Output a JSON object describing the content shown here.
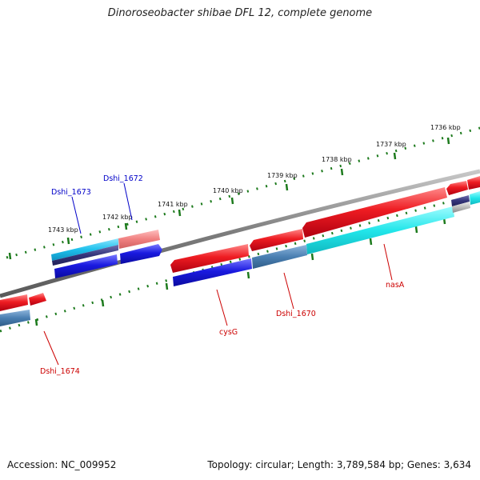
{
  "title": "Dinoroseobacter shibae DFL 12, complete genome",
  "footer": {
    "accession": "Accession: NC_009952",
    "topology": "Topology: circular; Length: 3,789,584 bp; Genes: 3,634"
  },
  "colors": {
    "forward_gene": "#e8141a",
    "reverse_gene": "#1414d8",
    "rna_forward": "#1ec8e8",
    "cds_cyan": "#22e6ea",
    "steel_blue": "#4a7fb2",
    "backbone": "#808080",
    "tick": "#1c7a1c",
    "label_red": "#cc0000",
    "label_blue": "#0000c8"
  },
  "scale_labels": [
    "1743 kbp",
    "1742 kbp",
    "1741 kbp",
    "1740 kbp",
    "1739 kbp",
    "1738 kbp",
    "1737 kbp",
    "1736 kbp"
  ],
  "gene_labels": [
    {
      "text": "Dshi_1673",
      "strand": "reverse"
    },
    {
      "text": "Dshi_1672",
      "strand": "reverse"
    },
    {
      "text": "Dshi_1674",
      "strand": "forward"
    },
    {
      "text": "cysG",
      "strand": "forward"
    },
    {
      "text": "Dshi_1670",
      "strand": "forward"
    },
    {
      "text": "nasA",
      "strand": "forward"
    }
  ]
}
